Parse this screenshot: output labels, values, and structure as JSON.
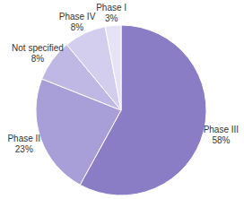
{
  "chart_data": {
    "type": "pie",
    "categories": [
      "Phase III",
      "Phase II",
      "Not specified",
      "Phase IV",
      "Phase I"
    ],
    "values": [
      58,
      23,
      8,
      8,
      3
    ],
    "value_labels": [
      "58%",
      "23%",
      "8%",
      "8%",
      "3%"
    ],
    "colors": [
      "#8a7dc6",
      "#a99fd8",
      "#bfb8e4",
      "#d3ceee",
      "#e6e3f6"
    ],
    "data_labels": true
  }
}
